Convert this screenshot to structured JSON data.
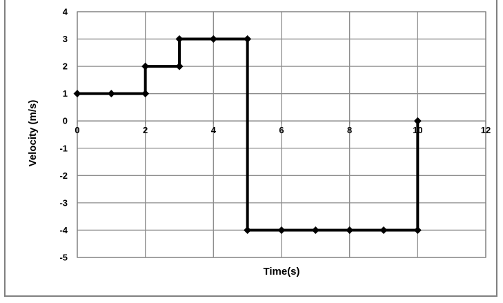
{
  "chart_data": {
    "type": "line",
    "title": "",
    "xlabel": "Time(s)",
    "ylabel": "Velocity (m/s)",
    "xlim": [
      0,
      12
    ],
    "ylim": [
      -5,
      4
    ],
    "xticks": [
      0,
      2,
      4,
      6,
      8,
      10,
      12
    ],
    "yticks": [
      4,
      3,
      2,
      1,
      0,
      -1,
      -2,
      -3,
      -4,
      -5
    ],
    "grid": true,
    "legend": "none",
    "color": "#000000",
    "x": [
      0,
      1,
      2,
      2,
      3,
      3,
      4,
      5,
      5,
      6,
      7,
      8,
      9,
      10,
      10
    ],
    "y": [
      1,
      1,
      1,
      2,
      2,
      3,
      3,
      3,
      -4,
      -4,
      -4,
      -4,
      -4,
      -4,
      0
    ]
  }
}
